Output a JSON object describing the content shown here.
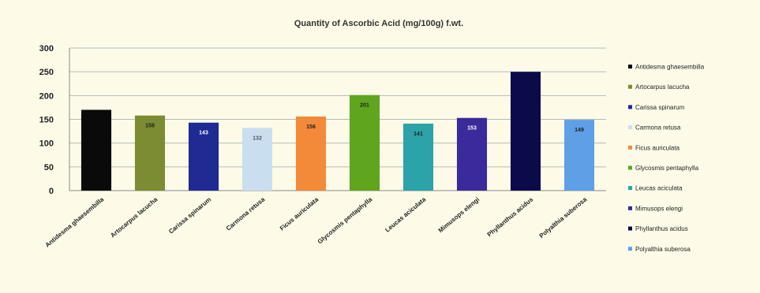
{
  "chart_data": {
    "type": "bar",
    "title": "Quantity of Ascorbic Acid (mg/100g) f.wt.",
    "xlabel": "",
    "ylabel": "",
    "ylim": [
      0,
      300
    ],
    "yticks": [
      0,
      50,
      100,
      150,
      200,
      250,
      300
    ],
    "grid": true,
    "legend_position": "right",
    "categories": [
      "Antidesma ghaesembilla",
      "Artocarpus lacucha",
      "Carissa spinarum",
      "Carmona retusa",
      "Ficus auriculata",
      "Glycosmis pentaphylla",
      "Leucas aciculata",
      "Mimusops elengi",
      "Phyllanthus acidus",
      "Polyalthia suberosa"
    ],
    "legend_labels": [
      "Antidesma ghaesembilla",
      "Artocarpus lacucha",
      "Carissa spinarum",
      "Carmona retusa",
      "Ficus auriculata",
      "Glycosmis pentaphylla",
      "Leucas aciculata",
      "Mimusops elengi",
      "Phyllanthus acidus",
      "Polyalthia suberosa"
    ],
    "values": [
      170,
      158,
      143,
      132,
      156,
      201,
      141,
      153,
      250,
      149
    ],
    "data_labels": [
      "",
      "158",
      "143",
      "132",
      "156",
      "201",
      "141",
      "153",
      "",
      "149"
    ],
    "colors": [
      "#0a0a0a",
      "#7b8c32",
      "#1f2a93",
      "#c9dff0",
      "#f28a3a",
      "#5fa51e",
      "#2ba3a8",
      "#3a2a9c",
      "#0b0b4a",
      "#5f9fe6"
    ],
    "label_colors": [
      "#ffffff",
      "#222222",
      "#ffffff",
      "#555555",
      "#222222",
      "#222222",
      "#222222",
      "#ffffff",
      "#ffffff",
      "#222222"
    ]
  }
}
